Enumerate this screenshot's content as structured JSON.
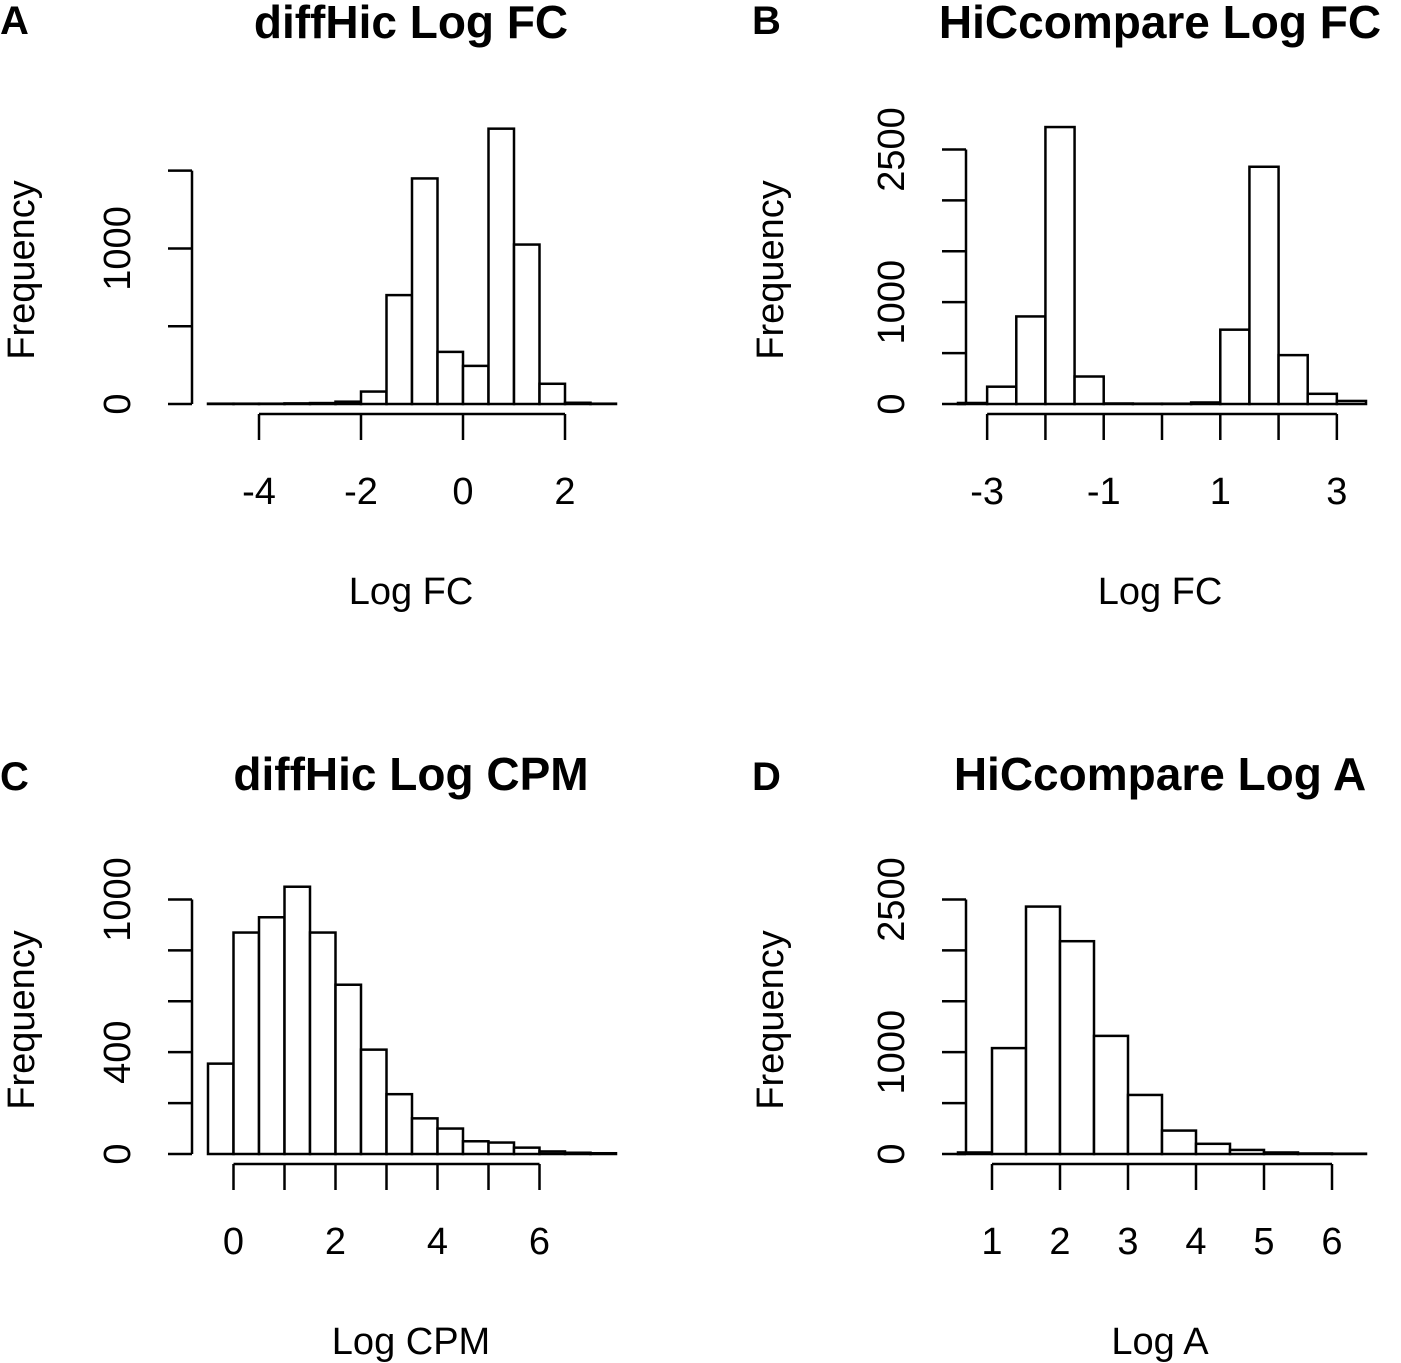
{
  "chart_data": [
    {
      "id": "A",
      "type": "bar",
      "panel_letter": "A",
      "title": "diffHic Log FC",
      "xlabel": "Log FC",
      "ylabel": "Frequency",
      "xlim": [
        -5,
        3
      ],
      "ylim": [
        0,
        1800
      ],
      "xticks": [
        -4,
        -2,
        0,
        2
      ],
      "xtick_labels": [
        "-4",
        "-2",
        "0",
        "2"
      ],
      "yticks": [
        0,
        500,
        1000,
        1500
      ],
      "ytick_labels": [
        "0",
        "",
        "1000",
        ""
      ],
      "bin_width": 0.5,
      "bins": [
        {
          "x0": -5.0,
          "value": 2
        },
        {
          "x0": -4.5,
          "value": 2
        },
        {
          "x0": -4.0,
          "value": 2
        },
        {
          "x0": -3.5,
          "value": 4
        },
        {
          "x0": -3.0,
          "value": 6
        },
        {
          "x0": -2.5,
          "value": 15
        },
        {
          "x0": -2.0,
          "value": 80
        },
        {
          "x0": -1.5,
          "value": 700
        },
        {
          "x0": -1.0,
          "value": 1450
        },
        {
          "x0": -0.5,
          "value": 335
        },
        {
          "x0": 0.0,
          "value": 245
        },
        {
          "x0": 0.5,
          "value": 1770
        },
        {
          "x0": 1.0,
          "value": 1025
        },
        {
          "x0": 1.5,
          "value": 130
        },
        {
          "x0": 2.0,
          "value": 8
        },
        {
          "x0": 2.5,
          "value": 2
        }
      ]
    },
    {
      "id": "B",
      "type": "bar",
      "panel_letter": "B",
      "title": "HiCcompare Log FC",
      "xlabel": "Log FC",
      "ylabel": "Frequency",
      "xlim": [
        -3.5,
        3.5
      ],
      "ylim": [
        0,
        2750
      ],
      "xticks": [
        -3,
        -2,
        -1,
        0,
        1,
        2,
        3
      ],
      "xtick_labels": [
        "-3",
        "",
        "-1",
        "",
        "1",
        "",
        "3"
      ],
      "yticks": [
        0,
        500,
        1000,
        1500,
        2000,
        2500
      ],
      "ytick_labels": [
        "0",
        "",
        "1000",
        "",
        "",
        "2500"
      ],
      "bin_width": 0.5,
      "bins": [
        {
          "x0": -3.5,
          "value": 10
        },
        {
          "x0": -3.0,
          "value": 170
        },
        {
          "x0": -2.5,
          "value": 860
        },
        {
          "x0": -2.0,
          "value": 2720
        },
        {
          "x0": -1.5,
          "value": 270
        },
        {
          "x0": -1.0,
          "value": 5
        },
        {
          "x0": -0.5,
          "value": 3
        },
        {
          "x0": 0.0,
          "value": 3
        },
        {
          "x0": 0.5,
          "value": 15
        },
        {
          "x0": 1.0,
          "value": 730
        },
        {
          "x0": 1.5,
          "value": 2330
        },
        {
          "x0": 2.0,
          "value": 480
        },
        {
          "x0": 2.5,
          "value": 100
        },
        {
          "x0": 3.0,
          "value": 30
        }
      ]
    },
    {
      "id": "C",
      "type": "bar",
      "panel_letter": "C",
      "title": "diffHic Log CPM",
      "xlabel": "Log CPM",
      "ylabel": "Frequency",
      "xlim": [
        -0.5,
        7.5
      ],
      "ylim": [
        0,
        1100
      ],
      "xticks": [
        0,
        1,
        2,
        3,
        4,
        5,
        6
      ],
      "xtick_labels": [
        "0",
        "",
        "2",
        "",
        "4",
        "",
        "6"
      ],
      "yticks": [
        0,
        200,
        400,
        600,
        800,
        1000
      ],
      "ytick_labels": [
        "0",
        "",
        "400",
        "",
        "",
        "1000"
      ],
      "bin_width": 0.5,
      "bins": [
        {
          "x0": -0.5,
          "value": 355
        },
        {
          "x0": 0.0,
          "value": 870
        },
        {
          "x0": 0.5,
          "value": 930
        },
        {
          "x0": 1.0,
          "value": 1050
        },
        {
          "x0": 1.5,
          "value": 870
        },
        {
          "x0": 2.0,
          "value": 665
        },
        {
          "x0": 2.5,
          "value": 410
        },
        {
          "x0": 3.0,
          "value": 235
        },
        {
          "x0": 3.5,
          "value": 140
        },
        {
          "x0": 4.0,
          "value": 100
        },
        {
          "x0": 4.5,
          "value": 50
        },
        {
          "x0": 5.0,
          "value": 45
        },
        {
          "x0": 5.5,
          "value": 25
        },
        {
          "x0": 6.0,
          "value": 10
        },
        {
          "x0": 6.5,
          "value": 5
        },
        {
          "x0": 7.0,
          "value": 3
        }
      ]
    },
    {
      "id": "D",
      "type": "bar",
      "panel_letter": "D",
      "title": "HiCcompare Log A",
      "xlabel": "Log A",
      "ylabel": "Frequency",
      "xlim": [
        0.5,
        6.5
      ],
      "ylim": [
        0,
        2750
      ],
      "xticks": [
        1,
        2,
        3,
        4,
        5,
        6
      ],
      "xtick_labels": [
        "1",
        "2",
        "3",
        "4",
        "5",
        "6"
      ],
      "yticks": [
        0,
        500,
        1000,
        1500,
        2000,
        2500
      ],
      "ytick_labels": [
        "0",
        "",
        "1000",
        "",
        "",
        "2500"
      ],
      "bin_width": 0.5,
      "bins": [
        {
          "x0": 0.5,
          "value": 15
        },
        {
          "x0": 1.0,
          "value": 1040
        },
        {
          "x0": 1.5,
          "value": 2430
        },
        {
          "x0": 2.0,
          "value": 2090
        },
        {
          "x0": 2.5,
          "value": 1160
        },
        {
          "x0": 3.0,
          "value": 580
        },
        {
          "x0": 3.5,
          "value": 230
        },
        {
          "x0": 4.0,
          "value": 100
        },
        {
          "x0": 4.5,
          "value": 40
        },
        {
          "x0": 5.0,
          "value": 15
        },
        {
          "x0": 5.5,
          "value": 5
        },
        {
          "x0": 6.0,
          "value": 3
        }
      ]
    }
  ]
}
